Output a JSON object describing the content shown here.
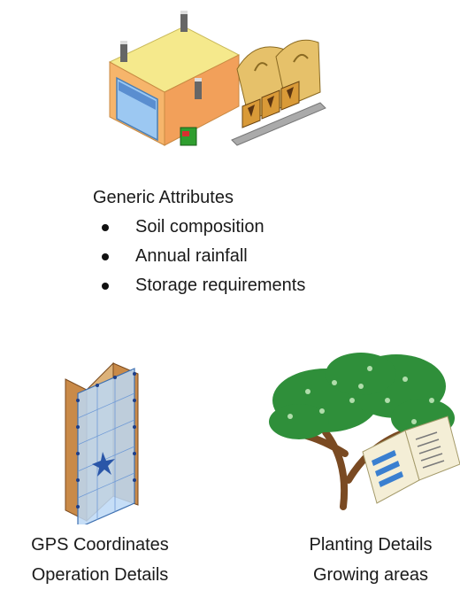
{
  "generic": {
    "title": "Generic Attributes",
    "items": [
      {
        "label": "Soil composition"
      },
      {
        "label": "Annual rainfall"
      },
      {
        "label": "Storage requirements"
      }
    ]
  },
  "left_caption": {
    "line1": "GPS Coordinates",
    "line2": "Operation Details"
  },
  "right_caption": {
    "line1": "Planting Details",
    "line2": "Growing areas"
  },
  "icons": [
    "warehouse-icon",
    "map-icon",
    "tree-icon"
  ]
}
